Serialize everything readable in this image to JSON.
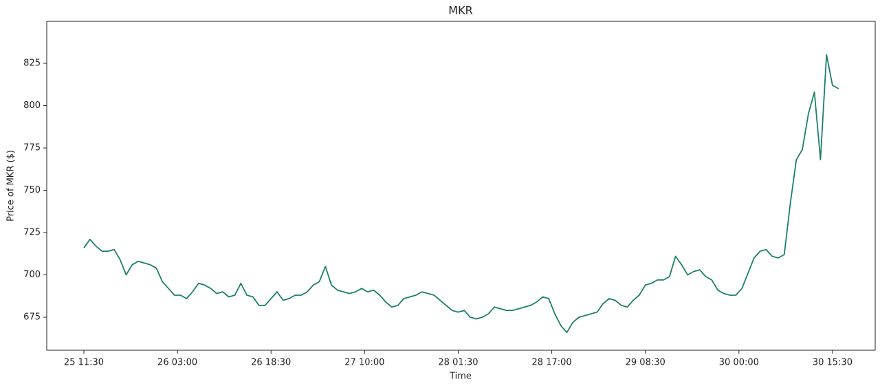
{
  "chart_data": {
    "type": "line",
    "title": "MKR",
    "xlabel": "Time",
    "ylabel": "Price of MKR ($)",
    "x": [
      "25 11:30",
      "25 12:30",
      "25 13:30",
      "25 14:30",
      "25 15:30",
      "25 16:30",
      "25 17:30",
      "25 18:30",
      "25 19:30",
      "25 20:30",
      "25 21:30",
      "25 22:30",
      "25 23:30",
      "26 00:30",
      "26 01:30",
      "26 02:30",
      "26 03:30",
      "26 04:30",
      "26 05:30",
      "26 06:30",
      "26 07:30",
      "26 08:30",
      "26 09:30",
      "26 10:30",
      "26 11:30",
      "26 12:30",
      "26 13:30",
      "26 14:30",
      "26 15:30",
      "26 16:30",
      "26 17:30",
      "26 18:30",
      "26 19:30",
      "26 20:30",
      "26 21:30",
      "26 22:30",
      "26 23:30",
      "27 00:30",
      "27 01:30",
      "27 02:30",
      "27 03:30",
      "27 04:30",
      "27 05:30",
      "27 06:30",
      "27 07:30",
      "27 08:30",
      "27 09:30",
      "27 10:30",
      "27 11:30",
      "27 12:30",
      "27 13:30",
      "27 14:30",
      "27 15:30",
      "27 16:30",
      "27 17:30",
      "27 18:30",
      "27 19:30",
      "27 20:30",
      "27 21:30",
      "27 22:30",
      "27 23:30",
      "28 00:30",
      "28 01:30",
      "28 02:30",
      "28 03:30",
      "28 04:30",
      "28 05:30",
      "28 06:30",
      "28 07:30",
      "28 08:30",
      "28 09:30",
      "28 10:30",
      "28 11:30",
      "28 12:30",
      "28 13:30",
      "28 14:30",
      "28 15:30",
      "28 16:30",
      "28 17:30",
      "28 18:30",
      "28 19:30",
      "28 20:30",
      "28 21:30",
      "28 22:30",
      "28 23:30",
      "29 00:30",
      "29 01:30",
      "29 02:30",
      "29 03:30",
      "29 04:30",
      "29 05:30",
      "29 06:30",
      "29 07:30",
      "29 08:30",
      "29 09:30",
      "29 10:30",
      "29 11:30",
      "29 12:30",
      "29 13:30",
      "29 14:30",
      "29 15:30",
      "29 16:30",
      "29 17:30",
      "29 18:30",
      "29 19:30",
      "29 20:30",
      "29 21:30",
      "29 22:30",
      "29 23:30",
      "30 00:30",
      "30 01:30",
      "30 02:30",
      "30 03:30",
      "30 04:30",
      "30 05:30",
      "30 06:30",
      "30 07:30",
      "30 08:30",
      "30 09:30",
      "30 10:30",
      "30 11:30",
      "30 12:30",
      "30 13:30",
      "30 14:30",
      "30 15:30",
      "30 16:30"
    ],
    "series": [
      {
        "name": "MKR",
        "color": "#1a7f6e",
        "values": [
          716,
          721,
          717,
          714,
          714,
          715,
          709,
          700,
          706,
          708,
          707,
          706,
          704,
          696,
          692,
          688,
          688,
          686,
          690,
          695,
          694,
          692,
          689,
          690,
          687,
          688,
          695,
          688,
          687,
          682,
          682,
          686,
          690,
          685,
          686,
          688,
          688,
          690,
          694,
          696,
          705,
          694,
          691,
          690,
          689,
          690,
          692,
          690,
          691,
          688,
          684,
          681,
          682,
          686,
          687,
          688,
          690,
          689,
          688,
          685,
          682,
          679,
          678,
          679,
          675,
          674,
          675,
          677,
          681,
          680,
          679,
          679,
          680,
          681,
          682,
          684,
          687,
          686,
          677,
          670,
          666,
          672,
          675,
          676,
          677,
          678,
          683,
          686,
          685,
          682,
          681,
          685,
          688,
          694,
          695,
          697,
          697,
          699,
          711,
          706,
          700,
          702,
          703,
          699,
          697,
          691,
          689,
          688,
          688,
          692,
          701,
          710,
          714,
          715,
          711,
          710,
          712,
          742,
          768,
          774,
          795,
          808,
          768,
          830,
          812,
          810
        ]
      }
    ],
    "xlim": [
      "25 05:21",
      "30 22:34"
    ],
    "xticks": [
      "25 11:30",
      "26 03:00",
      "26 18:30",
      "27 10:00",
      "28 01:30",
      "28 17:00",
      "29 08:30",
      "30 00:00",
      "30 15:30"
    ],
    "ylim": [
      655.5,
      849.8
    ],
    "yticks": [
      675,
      700,
      725,
      750,
      775,
      800,
      825
    ]
  }
}
